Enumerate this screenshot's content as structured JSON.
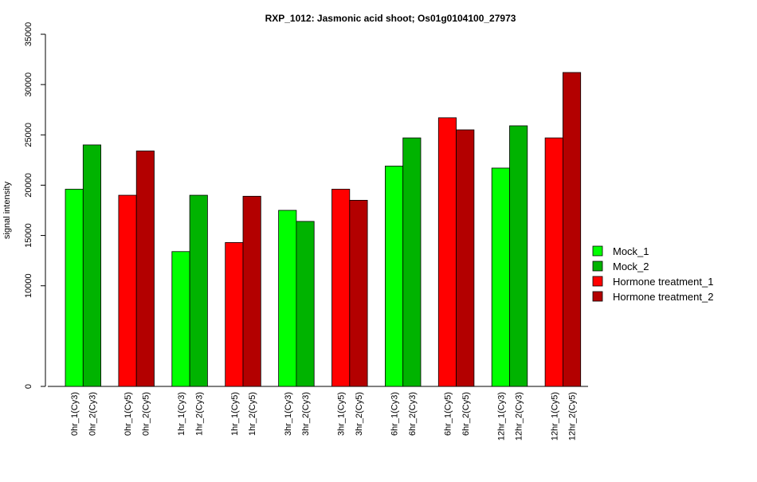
{
  "chart_data": {
    "type": "bar",
    "title": "RXP_1012: Jasmonic acid shoot; Os01g0104100_27973",
    "xlabel": "",
    "ylabel": "signal intensity",
    "ylim": [
      0,
      35000
    ],
    "yticks": [
      0,
      10000,
      15000,
      20000,
      25000,
      30000,
      35000
    ],
    "ytick_labels": [
      "0",
      "10000",
      "15000",
      "20000",
      "25000",
      "30000",
      "35000"
    ],
    "grid": false,
    "legend_position": "right",
    "groups": [
      {
        "bars": [
          {
            "label": "0hr_1(Cy3)",
            "value": 19600,
            "series": "Mock_1"
          },
          {
            "label": "0hr_2(Cy3)",
            "value": 24000,
            "series": "Mock_2"
          }
        ]
      },
      {
        "bars": [
          {
            "label": "0hr_1(Cy5)",
            "value": 19000,
            "series": "Hormone treatment_1"
          },
          {
            "label": "0hr_2(Cy5)",
            "value": 23400,
            "series": "Hormone treatment_2"
          }
        ]
      },
      {
        "bars": [
          {
            "label": "1hr_1(Cy3)",
            "value": 13400,
            "series": "Mock_1"
          },
          {
            "label": "1hr_2(Cy3)",
            "value": 19000,
            "series": "Mock_2"
          }
        ]
      },
      {
        "bars": [
          {
            "label": "1hr_1(Cy5)",
            "value": 14300,
            "series": "Hormone treatment_1"
          },
          {
            "label": "1hr_2(Cy5)",
            "value": 18900,
            "series": "Hormone treatment_2"
          }
        ]
      },
      {
        "bars": [
          {
            "label": "3hr_1(Cy3)",
            "value": 17500,
            "series": "Mock_1"
          },
          {
            "label": "3hr_2(Cy3)",
            "value": 16400,
            "series": "Mock_2"
          }
        ]
      },
      {
        "bars": [
          {
            "label": "3hr_1(Cy5)",
            "value": 19600,
            "series": "Hormone treatment_1"
          },
          {
            "label": "3hr_2(Cy5)",
            "value": 18500,
            "series": "Hormone treatment_2"
          }
        ]
      },
      {
        "bars": [
          {
            "label": "6hr_1(Cy3)",
            "value": 21900,
            "series": "Mock_1"
          },
          {
            "label": "6hr_2(Cy3)",
            "value": 24700,
            "series": "Mock_2"
          }
        ]
      },
      {
        "bars": [
          {
            "label": "6hr_1(Cy5)",
            "value": 26700,
            "series": "Hormone treatment_1"
          },
          {
            "label": "6hr_2(Cy5)",
            "value": 25500,
            "series": "Hormone treatment_2"
          }
        ]
      },
      {
        "bars": [
          {
            "label": "12hr_1(Cy3)",
            "value": 21700,
            "series": "Mock_1"
          },
          {
            "label": "12hr_2(Cy3)",
            "value": 25900,
            "series": "Mock_2"
          }
        ]
      },
      {
        "bars": [
          {
            "label": "12hr_1(Cy5)",
            "value": 24700,
            "series": "Hormone treatment_1"
          },
          {
            "label": "12hr_2(Cy5)",
            "value": 31200,
            "series": "Hormone treatment_2"
          }
        ]
      }
    ],
    "legend": [
      {
        "name": "Mock_1",
        "color": "#00ff00"
      },
      {
        "name": "Mock_2",
        "color": "#00b300"
      },
      {
        "name": "Hormone treatment_1",
        "color": "#ff0000"
      },
      {
        "name": "Hormone treatment_2",
        "color": "#b30000"
      }
    ]
  }
}
